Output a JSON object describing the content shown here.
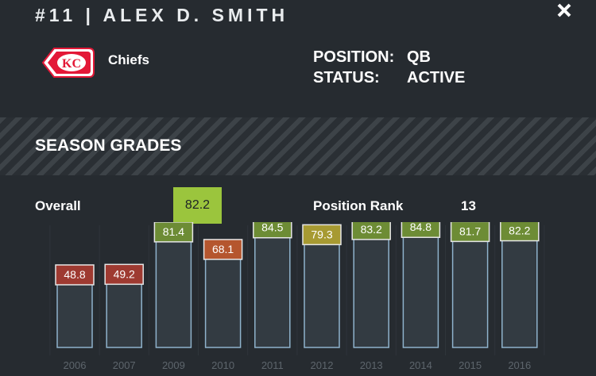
{
  "header": {
    "title": "#11 | ALEX D. SMITH",
    "close_icon": "close-icon"
  },
  "team": {
    "name": "Chiefs",
    "logo": "chiefs-arrowhead-logo",
    "logo_letters": "KC",
    "colors": {
      "primary": "#e31837",
      "secondary": "#ffffff"
    }
  },
  "info": {
    "position_label": "POSITION:",
    "position_value": "QB",
    "status_label": "STATUS:",
    "status_value": "ACTIVE"
  },
  "section": {
    "title": "SEASON GRADES"
  },
  "summary": {
    "overall_label": "Overall",
    "overall_value": "82.2",
    "overall_color": "#9bc53d",
    "rank_label": "Position Rank",
    "rank_value": "13"
  },
  "chart_data": {
    "type": "bar",
    "categories": [
      "2006",
      "2007",
      "2009",
      "2010",
      "2011",
      "2012",
      "2013",
      "2014",
      "2015",
      "2016"
    ],
    "values": [
      48.8,
      49.2,
      81.4,
      68.1,
      84.5,
      79.3,
      83.2,
      84.8,
      81.7,
      82.2
    ],
    "labels": [
      "48.8",
      "49.2",
      "81.4",
      "68.1",
      "84.5",
      "79.3",
      "83.2",
      "84.8",
      "81.7",
      "82.2"
    ],
    "label_colors": [
      "#9e3a31",
      "#9e3a31",
      "#6d8c35",
      "#b5562e",
      "#6d8c35",
      "#a79a32",
      "#6d8c35",
      "#6d8c35",
      "#6d8c35",
      "#6d8c35"
    ],
    "ylim": [
      0,
      100
    ],
    "bar_color": "#333b42",
    "bar_edge_color": "#8fb3cc",
    "grid": false
  }
}
